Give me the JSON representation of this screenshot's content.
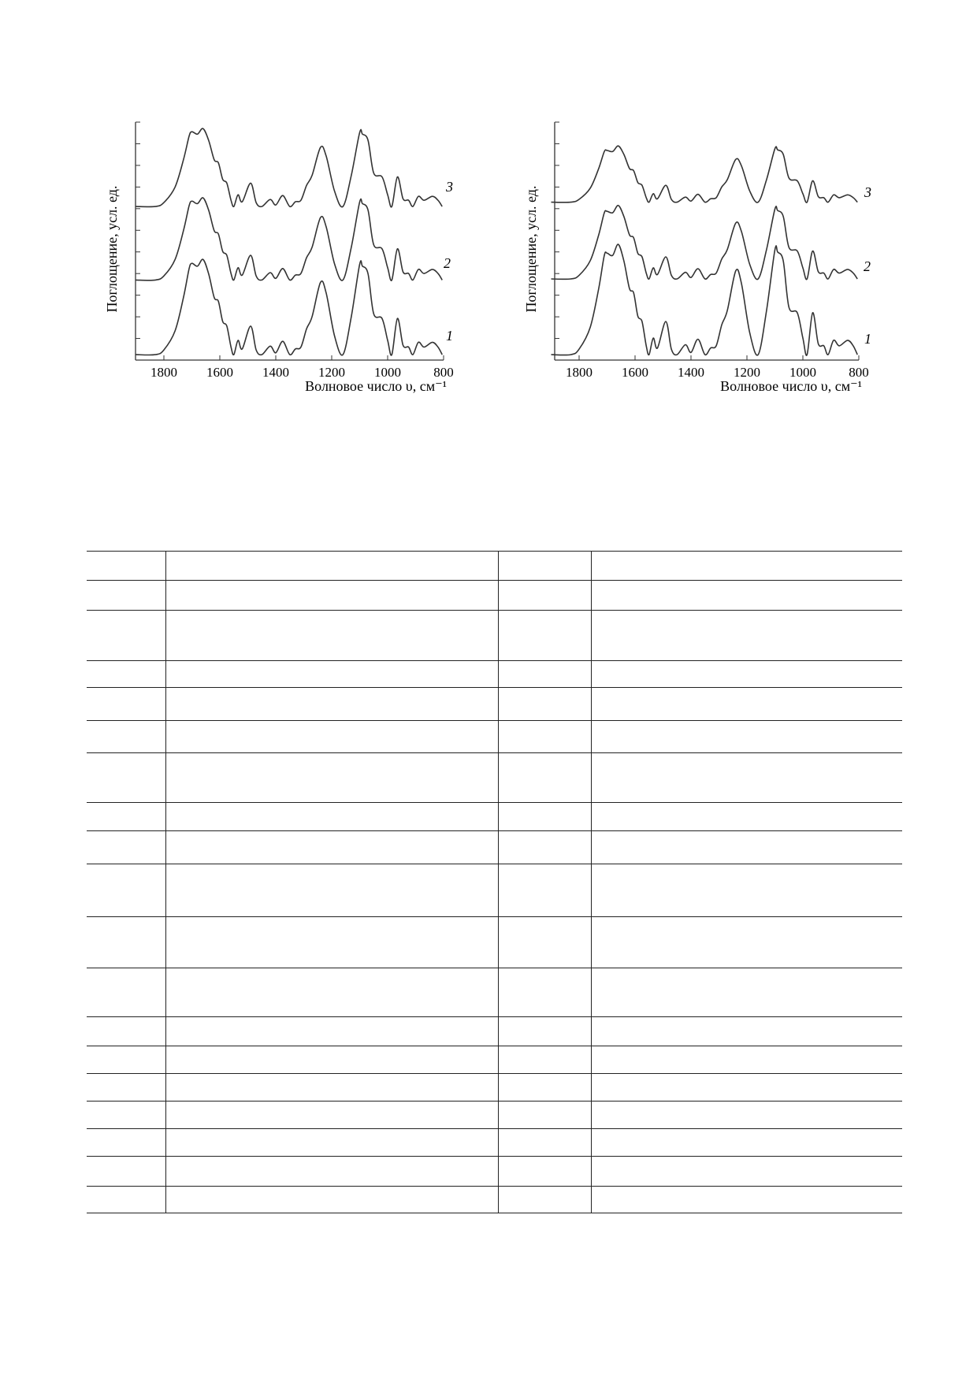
{
  "chart_data": [
    {
      "type": "line",
      "xlabel": "Волновое число υ, см⁻¹",
      "ylabel": "Поглощение, усл. ед.",
      "xlim": [
        1900,
        800
      ],
      "x_reversed": true,
      "xticks": [
        1800,
        1600,
        1400,
        1200,
        1000,
        800
      ],
      "ylim": [
        0,
        11
      ],
      "yticks_labeled": false,
      "grid": false,
      "line_color": "#333333",
      "profile": {
        "x": [
          1900,
          1830,
          1800,
          1760,
          1730,
          1710,
          1700,
          1680,
          1660,
          1640,
          1620,
          1605,
          1590,
          1575,
          1560,
          1550,
          1535,
          1520,
          1490,
          1470,
          1450,
          1420,
          1400,
          1375,
          1350,
          1330,
          1310,
          1290,
          1270,
          1240,
          1220,
          1190,
          1160,
          1130,
          1100,
          1090,
          1070,
          1050,
          1020,
          1000,
          985,
          965,
          945,
          925,
          910,
          890,
          870,
          840,
          820,
          805
        ],
        "y": [
          0,
          0,
          0.05,
          0.25,
          0.6,
          0.9,
          0.96,
          0.93,
          1.0,
          0.85,
          0.6,
          0.56,
          0.35,
          0.3,
          0.08,
          0,
          0.15,
          0.06,
          0.3,
          0.05,
          0,
          0.09,
          0.02,
          0.14,
          0,
          0.06,
          0.08,
          0.27,
          0.4,
          0.76,
          0.65,
          0.2,
          0,
          0.4,
          0.95,
          0.93,
          0.85,
          0.43,
          0.38,
          0.15,
          0,
          0.38,
          0.1,
          0.08,
          0,
          0.13,
          0.08,
          0.13,
          0.08,
          0
        ]
      },
      "series": [
        {
          "name": "1",
          "baseline": 0.25,
          "amplitude": 4.4
        },
        {
          "name": "2",
          "baseline": 3.7,
          "amplitude": 3.8
        },
        {
          "name": "3",
          "baseline": 7.1,
          "amplitude": 3.6
        }
      ]
    },
    {
      "type": "line",
      "xlabel": "Волновое число υ, см⁻¹",
      "ylabel": "Поглощение, усл. ед.",
      "xlim": [
        1900,
        800
      ],
      "x_reversed": true,
      "xticks": [
        1800,
        1600,
        1400,
        1200,
        1000,
        800
      ],
      "ylim": [
        0,
        11
      ],
      "yticks_labeled": false,
      "grid": false,
      "line_color": "#333333",
      "profile": {
        "x": [
          1900,
          1830,
          1800,
          1760,
          1730,
          1710,
          1700,
          1680,
          1660,
          1640,
          1620,
          1605,
          1590,
          1575,
          1560,
          1550,
          1535,
          1520,
          1490,
          1470,
          1450,
          1420,
          1400,
          1375,
          1350,
          1330,
          1310,
          1290,
          1270,
          1240,
          1220,
          1190,
          1160,
          1130,
          1100,
          1090,
          1070,
          1050,
          1020,
          1000,
          985,
          965,
          945,
          925,
          910,
          890,
          870,
          840,
          820,
          805
        ],
        "y": [
          0,
          0,
          0.05,
          0.25,
          0.6,
          0.9,
          0.92,
          0.9,
          1.0,
          0.85,
          0.6,
          0.56,
          0.35,
          0.3,
          0.08,
          0,
          0.15,
          0.06,
          0.3,
          0.05,
          0,
          0.09,
          0.02,
          0.14,
          0,
          0.06,
          0.08,
          0.27,
          0.4,
          0.76,
          0.65,
          0.2,
          0,
          0.4,
          0.95,
          0.93,
          0.85,
          0.43,
          0.38,
          0.15,
          0,
          0.38,
          0.1,
          0.08,
          0,
          0.13,
          0.08,
          0.13,
          0.08,
          0
        ]
      },
      "series": [
        {
          "name": "1",
          "baseline": 0.25,
          "amplitude": 5.1
        },
        {
          "name": "2",
          "baseline": 3.75,
          "amplitude": 3.4
        },
        {
          "name": "3",
          "baseline": 7.3,
          "amplitude": 2.6
        }
      ]
    }
  ],
  "table": {
    "columns": 4,
    "rows": [
      [
        "",
        "",
        "",
        ""
      ],
      [
        "",
        "",
        "",
        ""
      ],
      [
        "",
        "",
        "",
        ""
      ],
      [
        "",
        "",
        "",
        ""
      ],
      [
        "",
        "",
        "",
        ""
      ],
      [
        "",
        "",
        "",
        ""
      ],
      [
        "",
        "",
        "",
        ""
      ],
      [
        "",
        "",
        "",
        ""
      ],
      [
        "",
        "",
        "",
        ""
      ],
      [
        "",
        "",
        "",
        ""
      ],
      [
        "",
        "",
        "",
        ""
      ],
      [
        "",
        "",
        "",
        ""
      ],
      [
        "",
        "",
        "",
        ""
      ],
      [
        "",
        "",
        "",
        ""
      ],
      [
        "",
        "",
        "",
        ""
      ],
      [
        "",
        "",
        "",
        ""
      ],
      [
        "",
        "",
        "",
        ""
      ],
      [
        "",
        "",
        "",
        ""
      ],
      [
        "",
        "",
        "",
        ""
      ]
    ]
  }
}
